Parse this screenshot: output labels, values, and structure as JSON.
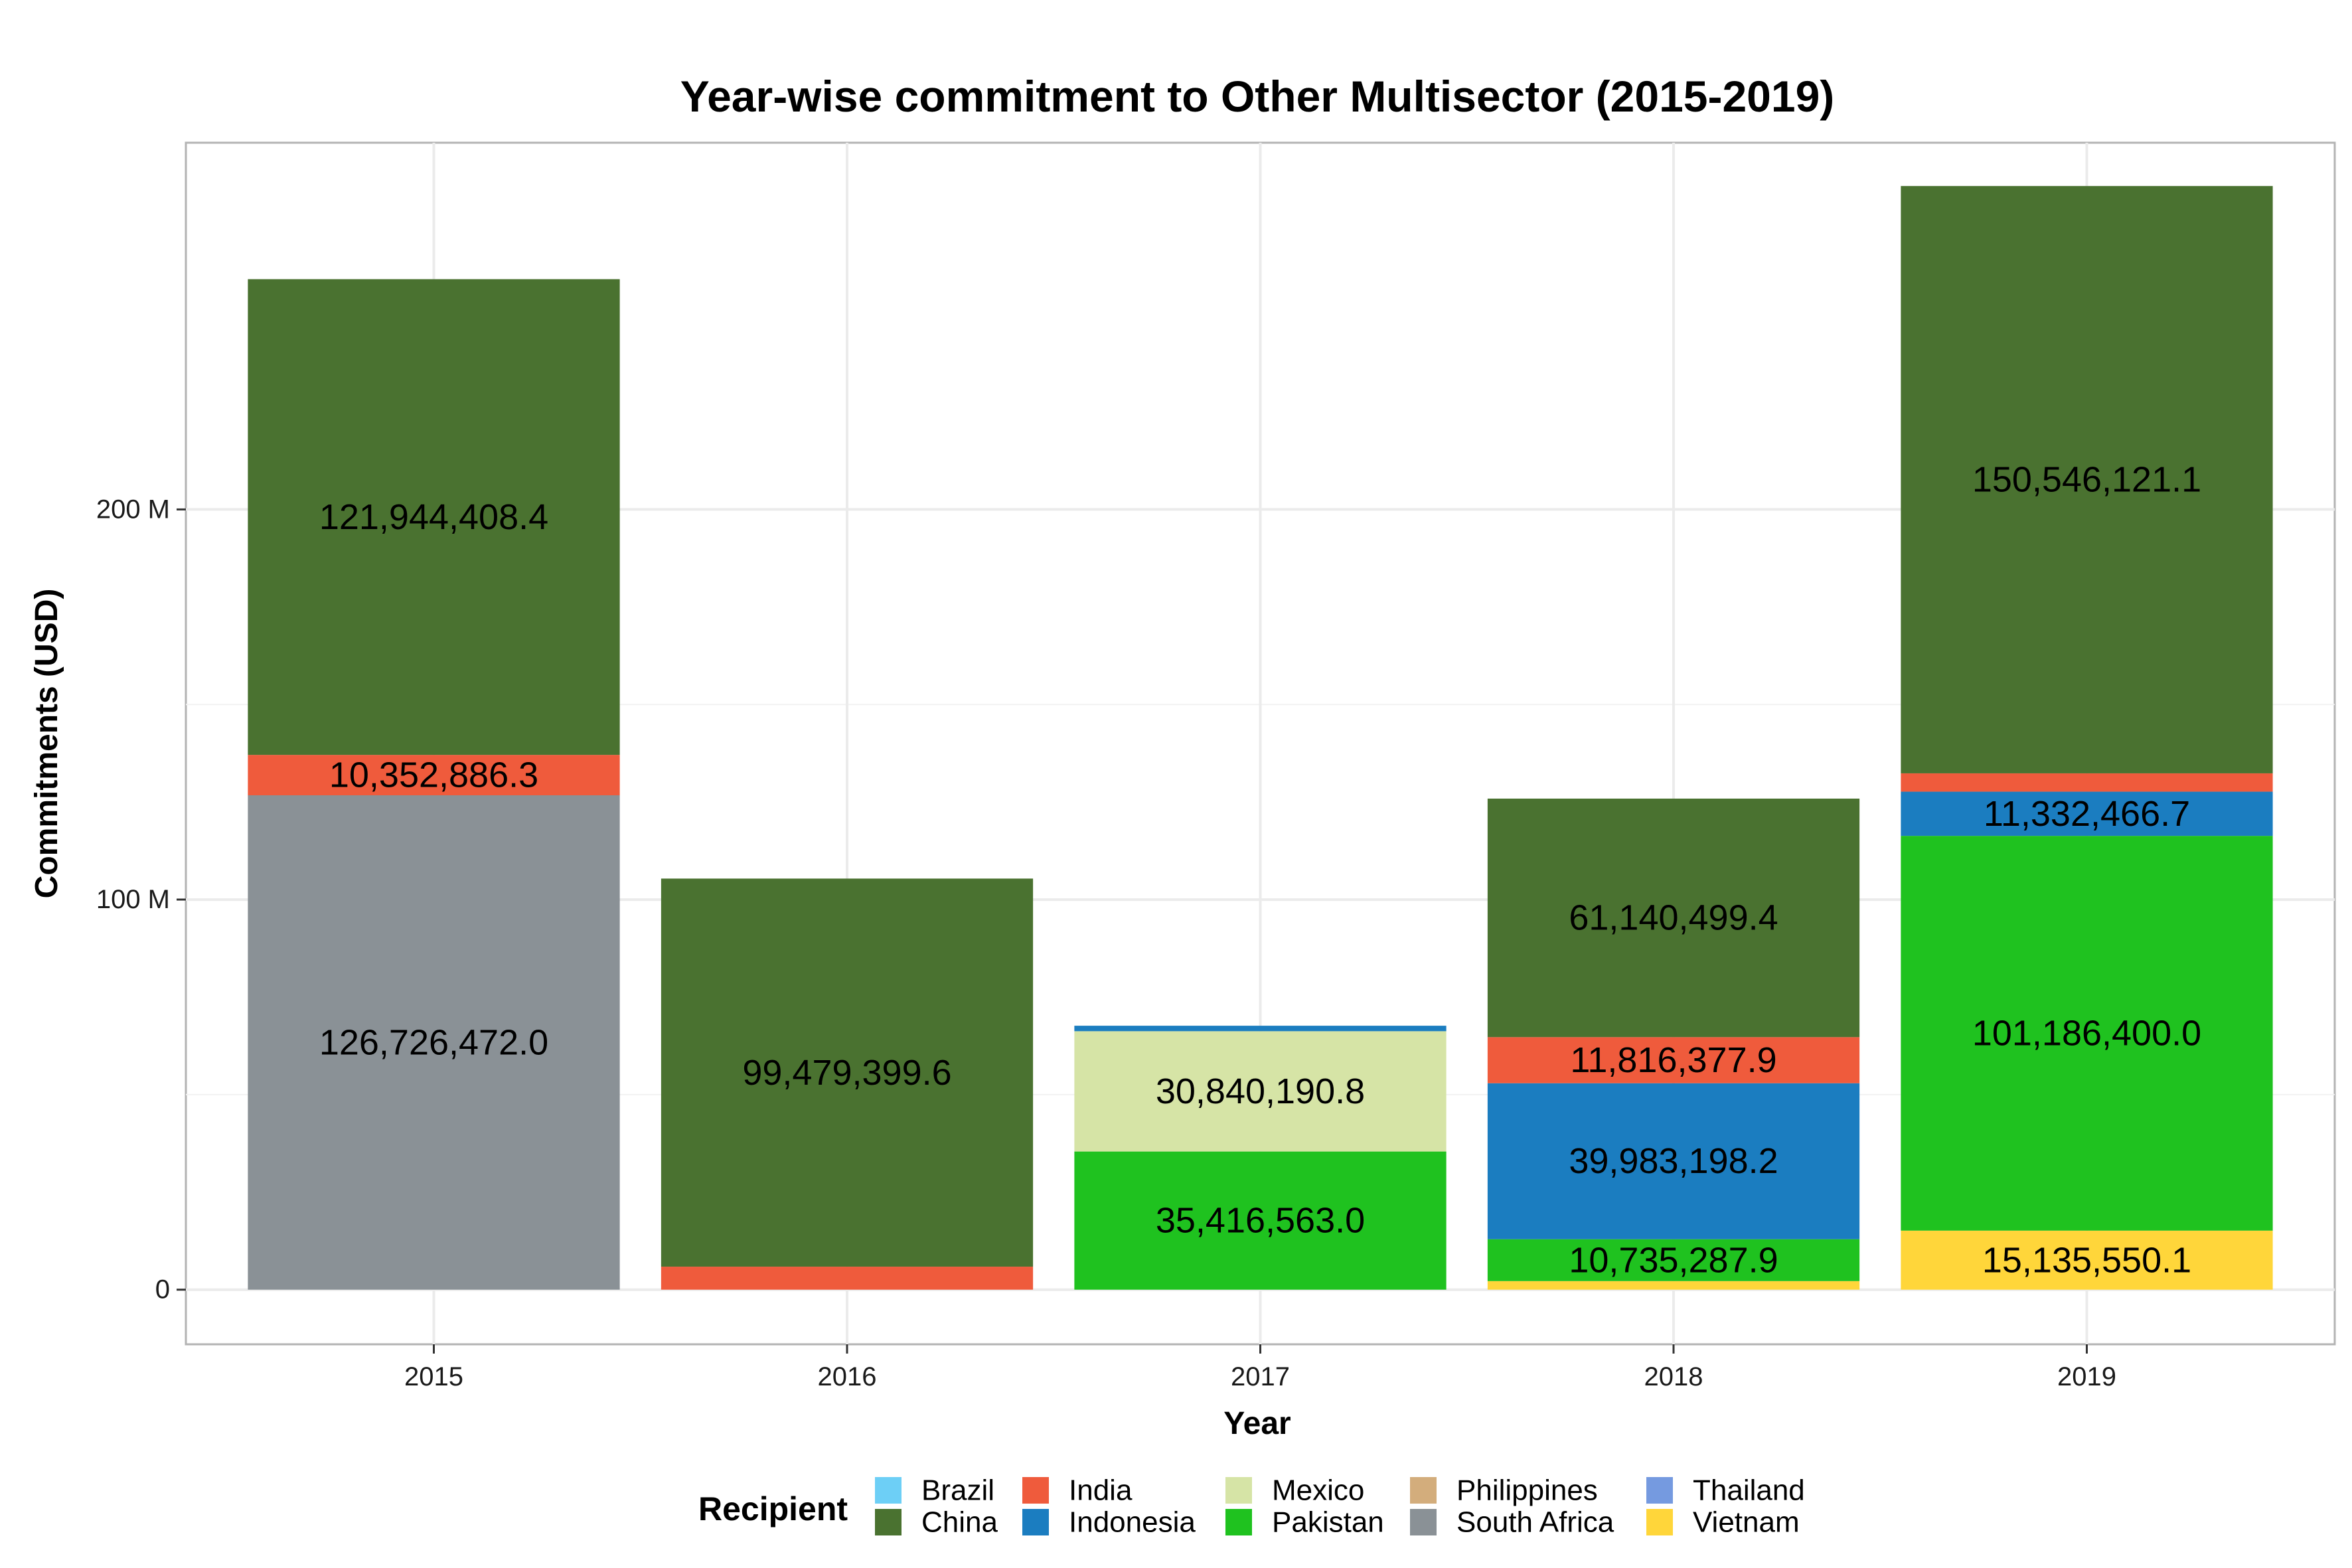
{
  "chart_data": {
    "type": "bar",
    "stacked": true,
    "title": "Year-wise commitment to Other Multisector (2015-2019)",
    "xlabel": "Year",
    "ylabel": "Commitments (USD)",
    "ylim": [
      -14000000,
      294000000
    ],
    "y_ticks": [
      {
        "value": 0,
        "label": "0"
      },
      {
        "value": 100000000,
        "label": "100 M"
      },
      {
        "value": 200000000,
        "label": "200 M"
      }
    ],
    "grid": true,
    "legend_position": "bottom",
    "legend_title": "Recipient",
    "categories": [
      "2015",
      "2016",
      "2017",
      "2018",
      "2019"
    ],
    "series": [
      {
        "name": "Brazil",
        "color": "#6DCFF6",
        "values": [
          0,
          0,
          0,
          0,
          0
        ],
        "labels": [
          "",
          "",
          "",
          "",
          ""
        ]
      },
      {
        "name": "China",
        "color": "#4A7230",
        "values": [
          121944408.4,
          99479399.6,
          0,
          61140499.4,
          150546121.1
        ],
        "labels": [
          "121,944,408.4",
          "99,479,399.6",
          "",
          "61,140,499.4",
          "150,546,121.1"
        ]
      },
      {
        "name": "India",
        "color": "#EF5B3C",
        "values": [
          10352886.3,
          5900000,
          0,
          11816377.9,
          4700000
        ],
        "labels": [
          "10,352,886.3",
          "",
          "",
          "11,816,377.9",
          ""
        ]
      },
      {
        "name": "Indonesia",
        "color": "#1B7DC0",
        "values": [
          0,
          0,
          1400000,
          39983198.2,
          11332466.7
        ],
        "labels": [
          "",
          "",
          "",
          "39,983,198.2",
          "11,332,466.7"
        ]
      },
      {
        "name": "Mexico",
        "color": "#D6E4A6",
        "values": [
          0,
          0,
          30840190.8,
          0,
          0
        ],
        "labels": [
          "",
          "",
          "30,840,190.8",
          "",
          ""
        ]
      },
      {
        "name": "Pakistan",
        "color": "#1FC21F",
        "values": [
          0,
          0,
          35416563.0,
          10735287.9,
          101186400.0
        ],
        "labels": [
          "",
          "",
          "35,416,563.0",
          "10,735,287.9",
          "101,186,400.0"
        ]
      },
      {
        "name": "Philippines",
        "color": "#D3AD7C",
        "values": [
          0,
          0,
          0,
          0,
          0
        ],
        "labels": [
          "",
          "",
          "",
          "",
          ""
        ]
      },
      {
        "name": "South Africa",
        "color": "#8A9196",
        "values": [
          126726472.0,
          0,
          0,
          0,
          0
        ],
        "labels": [
          "126,726,472.0",
          "",
          "",
          "",
          ""
        ]
      },
      {
        "name": "Thailand",
        "color": "#759AE0",
        "values": [
          0,
          0,
          0,
          0,
          0
        ],
        "labels": [
          "",
          "",
          "",
          "",
          ""
        ]
      },
      {
        "name": "Vietnam",
        "color": "#FFD63A",
        "values": [
          0,
          0,
          0,
          2200000,
          15135550.1
        ],
        "labels": [
          "",
          "",
          "",
          "",
          "15,135,550.1"
        ]
      }
    ],
    "stack_order_bottom_to_top": [
      "Vietnam",
      "South Africa",
      "Pakistan",
      "Mexico",
      "Indonesia",
      "India",
      "China"
    ],
    "legend_order": [
      "Brazil",
      "China",
      "India",
      "Indonesia",
      "Mexico",
      "Pakistan",
      "Philippines",
      "South Africa",
      "Thailand",
      "Vietnam"
    ]
  }
}
